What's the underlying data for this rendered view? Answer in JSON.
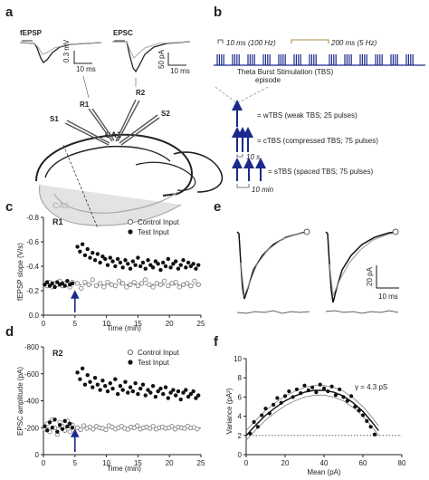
{
  "panels": {
    "a": {
      "label": "a",
      "fepsp_title": "fEPSP",
      "epsc_title": "EPSC",
      "fepsp_scale": {
        "v": "0.3 mV",
        "t": "10 ms"
      },
      "epsc_scale": {
        "v": "50 pA",
        "t": "10 ms"
      },
      "electrodes": [
        "R1",
        "R2",
        "S1",
        "S2"
      ],
      "regions": [
        "CA1",
        "CA3"
      ]
    },
    "b": {
      "label": "b",
      "hz100": "10 ms (100 Hz)",
      "hz5": "200 ms (5 Hz)",
      "tbs_line1": "Theta Burst Stimulation (TBS)",
      "tbs_line2": "episode",
      "protocols": [
        "= wTBS (weak TBS; 25 pulses)",
        "= cTBS (compressed TBS; 75 pulses)",
        "= sTBS (spaced TBS; 75 pulses)"
      ],
      "gap_short": "10 s",
      "gap_long": "10 min"
    },
    "c": {
      "label": "c",
      "title": "R1",
      "ylabel": "fEPSP slope (V/s)",
      "xlabel": "Time (min)",
      "legend": [
        "Control Input",
        "Test Input"
      ]
    },
    "d": {
      "label": "d",
      "title": "R2",
      "ylabel": "EPSC amplitude (pA)",
      "xlabel": "Time (min)",
      "legend": [
        "Control Input",
        "Test Input"
      ]
    },
    "e": {
      "label": "e",
      "scale_v": "20 pA",
      "scale_t": "10 ms"
    },
    "f": {
      "label": "f",
      "ylabel": "Variance (pA²)",
      "xlabel": "Mean (pA)",
      "annotation": "γ = 4.3 pS"
    }
  },
  "chart_data": [
    {
      "id": "c",
      "type": "scatter",
      "title": "R1",
      "xlabel": "Time (min)",
      "ylabel": "fEPSP slope (V/s)",
      "xlim": [
        0,
        25
      ],
      "ylim": [
        -0.8,
        0.0
      ],
      "xticks": [
        0,
        5,
        10,
        15,
        20,
        25
      ],
      "yticks": [
        -0.8,
        -0.6,
        -0.4,
        -0.2,
        0.0
      ],
      "ytick_labels": [
        "-0.8",
        "-0.6",
        "-0.4",
        "-0.2",
        "0.0"
      ],
      "stim_time": 5,
      "baseline": -0.25,
      "legend_position": "top-right",
      "series": [
        {
          "name": "Control Input",
          "marker": "open",
          "x": [
            0.2,
            0.6,
            1.0,
            1.4,
            1.8,
            2.2,
            2.6,
            3.0,
            3.4,
            3.8,
            4.2,
            4.6,
            5.4,
            6.0,
            6.6,
            7.2,
            7.8,
            8.4,
            9.0,
            9.6,
            10.2,
            10.8,
            11.4,
            12.0,
            12.6,
            13.2,
            13.8,
            14.4,
            15.0,
            15.6,
            16.2,
            16.8,
            17.4,
            18.0,
            18.6,
            19.2,
            19.8,
            20.4,
            21.0,
            21.6,
            22.2,
            22.8,
            23.4,
            24.0,
            24.6
          ],
          "y": [
            -0.26,
            -0.24,
            -0.27,
            -0.23,
            -0.26,
            -0.25,
            -0.28,
            -0.24,
            -0.26,
            -0.25,
            -0.23,
            -0.27,
            -0.26,
            -0.22,
            -0.27,
            -0.25,
            -0.29,
            -0.24,
            -0.26,
            -0.23,
            -0.27,
            -0.25,
            -0.24,
            -0.28,
            -0.26,
            -0.23,
            -0.25,
            -0.27,
            -0.24,
            -0.26,
            -0.29,
            -0.25,
            -0.23,
            -0.26,
            -0.25,
            -0.28,
            -0.24,
            -0.26,
            -0.27,
            -0.23,
            -0.25,
            -0.26,
            -0.24,
            -0.28,
            -0.25
          ]
        },
        {
          "name": "Test Input",
          "marker": "filled",
          "x": [
            0.2,
            0.6,
            1.0,
            1.4,
            1.8,
            2.2,
            2.6,
            3.0,
            3.4,
            3.8,
            4.2,
            4.6,
            5.4,
            5.8,
            6.2,
            6.6,
            7.0,
            7.4,
            7.8,
            8.2,
            8.6,
            9.0,
            9.4,
            9.8,
            10.2,
            10.6,
            11.0,
            11.4,
            11.8,
            12.2,
            12.6,
            13.0,
            13.4,
            13.8,
            14.2,
            14.6,
            15.0,
            15.4,
            15.8,
            16.2,
            16.6,
            17.0,
            17.4,
            17.8,
            18.2,
            18.6,
            19.0,
            19.4,
            19.8,
            20.2,
            20.6,
            21.0,
            21.4,
            21.8,
            22.2,
            22.6,
            23.0,
            23.4,
            23.8,
            24.2,
            24.6
          ],
          "y": [
            -0.25,
            -0.27,
            -0.24,
            -0.26,
            -0.23,
            -0.27,
            -0.25,
            -0.26,
            -0.24,
            -0.28,
            -0.25,
            -0.26,
            -0.56,
            -0.52,
            -0.58,
            -0.49,
            -0.54,
            -0.47,
            -0.51,
            -0.45,
            -0.5,
            -0.43,
            -0.48,
            -0.46,
            -0.41,
            -0.47,
            -0.44,
            -0.4,
            -0.46,
            -0.43,
            -0.39,
            -0.45,
            -0.42,
            -0.38,
            -0.44,
            -0.41,
            -0.47,
            -0.4,
            -0.43,
            -0.38,
            -0.45,
            -0.41,
            -0.39,
            -0.44,
            -0.42,
            -0.37,
            -0.43,
            -0.4,
            -0.46,
            -0.39,
            -0.42,
            -0.44,
            -0.38,
            -0.41,
            -0.45,
            -0.39,
            -0.43,
            -0.4,
            -0.42,
            -0.38,
            -0.41
          ]
        }
      ]
    },
    {
      "id": "d",
      "type": "scatter",
      "title": "R2",
      "xlabel": "Time (min)",
      "ylabel": "EPSC amplitude (pA)",
      "xlim": [
        0,
        25
      ],
      "ylim": [
        -800,
        0
      ],
      "xticks": [
        0,
        5,
        10,
        15,
        20,
        25
      ],
      "yticks": [
        -800,
        -600,
        -400,
        -200,
        0
      ],
      "ytick_labels": [
        "-800",
        "-600",
        "-400",
        "-200",
        "0"
      ],
      "stim_time": 5,
      "baseline": -200,
      "legend_position": "top-right",
      "series": [
        {
          "name": "Control Input",
          "marker": "open",
          "x": [
            0.2,
            0.6,
            1.0,
            1.4,
            1.8,
            2.2,
            2.6,
            3.0,
            3.4,
            3.8,
            4.2,
            4.6,
            5.4,
            5.9,
            6.4,
            6.9,
            7.4,
            7.9,
            8.4,
            8.9,
            9.4,
            9.9,
            10.4,
            10.9,
            11.4,
            11.9,
            12.4,
            12.9,
            13.4,
            13.9,
            14.4,
            14.9,
            15.4,
            15.9,
            16.4,
            16.9,
            17.4,
            17.9,
            18.4,
            18.9,
            19.4,
            19.9,
            20.4,
            20.9,
            21.4,
            21.9,
            22.4,
            22.9,
            23.4,
            23.9,
            24.4
          ],
          "y": [
            -190,
            -230,
            -170,
            -260,
            -200,
            -150,
            -240,
            -210,
            -180,
            -250,
            -170,
            -220,
            -200,
            -185,
            -215,
            -195,
            -205,
            -190,
            -210,
            -200,
            -195,
            -185,
            -215,
            -205,
            -190,
            -200,
            -210,
            -195,
            -188,
            -205,
            -200,
            -215,
            -190,
            -200,
            -205,
            -195,
            -210,
            -190,
            -200,
            -205,
            -195,
            -200,
            -210,
            -190,
            -205,
            -200,
            -195,
            -210,
            -198,
            -202,
            -190
          ]
        },
        {
          "name": "Test Input",
          "marker": "filled",
          "x": [
            0.2,
            0.6,
            1.0,
            1.4,
            1.8,
            2.2,
            2.6,
            3.0,
            3.4,
            3.8,
            4.2,
            4.6,
            5.4,
            5.8,
            6.2,
            6.6,
            7.0,
            7.4,
            7.8,
            8.2,
            8.6,
            9.0,
            9.4,
            9.8,
            10.2,
            10.6,
            11.0,
            11.4,
            11.8,
            12.2,
            12.6,
            13.0,
            13.4,
            13.8,
            14.2,
            14.6,
            15.0,
            15.4,
            15.8,
            16.2,
            16.6,
            17.0,
            17.4,
            17.8,
            18.2,
            18.6,
            19.0,
            19.4,
            19.8,
            20.2,
            20.6,
            21.0,
            21.4,
            21.8,
            22.2,
            22.6,
            23.0,
            23.4,
            23.8,
            24.2,
            24.6
          ],
          "y": [
            -210,
            -180,
            -240,
            -200,
            -260,
            -170,
            -220,
            -190,
            -250,
            -210,
            -230,
            -200,
            -610,
            -560,
            -640,
            -520,
            -590,
            -540,
            -500,
            -570,
            -520,
            -480,
            -550,
            -510,
            -470,
            -530,
            -490,
            -560,
            -450,
            -510,
            -480,
            -540,
            -460,
            -500,
            -470,
            -530,
            -450,
            -490,
            -520,
            -440,
            -480,
            -460,
            -510,
            -430,
            -470,
            -490,
            -450,
            -500,
            -420,
            -460,
            -480,
            -440,
            -470,
            -410,
            -460,
            -480,
            -430,
            -450,
            -470,
            -420,
            -440
          ]
        }
      ]
    },
    {
      "id": "f",
      "type": "scatter",
      "xlabel": "Mean (pA)",
      "ylabel": "Variance (pA²)",
      "xlim": [
        0,
        80
      ],
      "ylim": [
        0,
        10
      ],
      "xticks": [
        0,
        20,
        40,
        60,
        80
      ],
      "yticks": [
        0,
        2,
        4,
        6,
        8,
        10
      ],
      "dotted_level": 2.0,
      "annotation": "γ = 4.3 pS",
      "series": [
        {
          "name": "",
          "marker": "filled",
          "x": [
            2,
            4,
            6,
            8,
            10,
            12,
            14,
            16,
            18,
            20,
            22,
            24,
            26,
            28,
            30,
            32,
            34,
            36,
            38,
            40,
            42,
            44,
            46,
            48,
            50,
            52,
            54,
            56,
            58,
            60,
            62,
            64,
            66
          ],
          "y": [
            2.2,
            3.4,
            2.9,
            4.1,
            4.8,
            4.3,
            5.2,
            5.9,
            5.4,
            6.1,
            6.6,
            6.0,
            6.8,
            6.4,
            7.2,
            6.7,
            7.0,
            6.5,
            7.3,
            6.9,
            6.6,
            7.1,
            6.2,
            6.8,
            6.0,
            5.6,
            6.1,
            5.0,
            4.6,
            4.1,
            3.5,
            2.9,
            2.1
          ]
        }
      ],
      "fit": {
        "x": [
          0,
          5,
          10,
          15,
          20,
          25,
          30,
          35,
          40,
          45,
          50,
          55,
          60,
          65,
          68
        ],
        "y": [
          2.0,
          3.1,
          4.1,
          4.9,
          5.6,
          6.1,
          6.5,
          6.7,
          6.7,
          6.5,
          6.1,
          5.4,
          4.5,
          3.3,
          2.5
        ]
      }
    }
  ]
}
